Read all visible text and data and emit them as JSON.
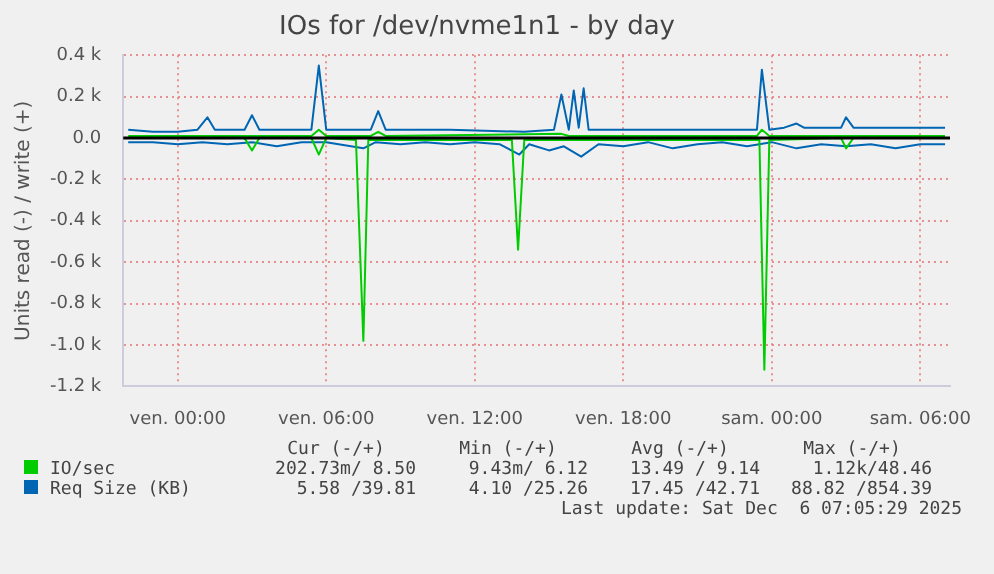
{
  "chart_data": {
    "type": "line",
    "title": "IOs for /dev/nvme1n1 - by day",
    "ylabel": "Units read (-) / write (+)",
    "xlim": [
      "2025-12-04T21:48",
      "2025-12-06T07:12"
    ],
    "xticks": [
      {
        "value": "2025-12-05T00:00",
        "label": "ven. 00:00"
      },
      {
        "value": "2025-12-05T06:00",
        "label": "ven. 06:00"
      },
      {
        "value": "2025-12-05T12:00",
        "label": "ven. 12:00"
      },
      {
        "value": "2025-12-05T18:00",
        "label": "ven. 18:00"
      },
      {
        "value": "2025-12-06T00:00",
        "label": "sam. 00:00"
      },
      {
        "value": "2025-12-06T06:00",
        "label": "sam. 06:00"
      }
    ],
    "ylim": [
      -1200,
      400
    ],
    "yticks": [
      {
        "value": 400,
        "label": "0.4 k"
      },
      {
        "value": 200,
        "label": "0.2 k"
      },
      {
        "value": 0,
        "label": "0.0"
      },
      {
        "value": -200,
        "label": "-0.2 k"
      },
      {
        "value": -400,
        "label": "-0.4 k"
      },
      {
        "value": -600,
        "label": "-0.6 k"
      },
      {
        "value": -800,
        "label": "-0.8 k"
      },
      {
        "value": -1000,
        "label": "-1.0 k"
      },
      {
        "value": -1200,
        "label": "-1.2 k"
      }
    ],
    "grid": true,
    "legend": "bottom",
    "marker": "none",
    "line_style": "solid",
    "series": [
      {
        "name": "IO/sec",
        "color": "#00cc00",
        "x": [
          "2025-12-04T22:00",
          "2025-12-05T02:42",
          "2025-12-05T03:00",
          "2025-12-05T03:18",
          "2025-12-05T05:24",
          "2025-12-05T05:42",
          "2025-12-05T06:00",
          "2025-12-05T07:12",
          "2025-12-05T07:30",
          "2025-12-05T07:42",
          "2025-12-05T13:30",
          "2025-12-05T13:45",
          "2025-12-05T14:00",
          "2025-12-05T23:30",
          "2025-12-05T23:42",
          "2025-12-05T23:54",
          "2025-12-06T02:48",
          "2025-12-06T03:00",
          "2025-12-06T03:18",
          "2025-12-06T07:00"
        ],
        "values": [
          0,
          0,
          -60,
          0,
          0,
          -80,
          0,
          -10,
          -980,
          -10,
          -10,
          -540,
          -10,
          -10,
          -1120,
          -10,
          0,
          -50,
          0,
          0
        ]
      },
      {
        "color": "#00cc00",
        "x": [
          "2025-12-04T22:00",
          "2025-12-05T05:24",
          "2025-12-05T05:42",
          "2025-12-05T06:00",
          "2025-12-05T07:48",
          "2025-12-05T08:06",
          "2025-12-05T08:24",
          "2025-12-05T15:30",
          "2025-12-05T15:48",
          "2025-12-05T23:24",
          "2025-12-05T23:36",
          "2025-12-05T23:54",
          "2025-12-06T07:00"
        ],
        "values": [
          10,
          10,
          40,
          10,
          10,
          30,
          10,
          20,
          10,
          10,
          40,
          10,
          10
        ]
      },
      {
        "name": "Req Size (KB)",
        "color": "#0066b3",
        "x": [
          "2025-12-04T22:00",
          "2025-12-04T23:00",
          "2025-12-05T00:00",
          "2025-12-05T01:00",
          "2025-12-05T02:00",
          "2025-12-05T03:00",
          "2025-12-05T04:00",
          "2025-12-05T05:00",
          "2025-12-05T06:00",
          "2025-12-05T07:30",
          "2025-12-05T08:00",
          "2025-12-05T09:00",
          "2025-12-05T10:00",
          "2025-12-05T11:00",
          "2025-12-05T12:00",
          "2025-12-05T13:00",
          "2025-12-05T13:48",
          "2025-12-05T14:12",
          "2025-12-05T15:00",
          "2025-12-05T15:36",
          "2025-12-05T16:18",
          "2025-12-05T17:00",
          "2025-12-05T18:00",
          "2025-12-05T19:00",
          "2025-12-05T20:00",
          "2025-12-05T21:00",
          "2025-12-05T22:00",
          "2025-12-05T23:00",
          "2025-12-06T00:00",
          "2025-12-06T01:00",
          "2025-12-06T02:00",
          "2025-12-06T03:00",
          "2025-12-06T04:00",
          "2025-12-06T05:00",
          "2025-12-06T06:00",
          "2025-12-06T07:00"
        ],
        "values": [
          -20,
          -20,
          -30,
          -20,
          -30,
          -20,
          -40,
          -20,
          -20,
          -50,
          -20,
          -30,
          -20,
          -30,
          -20,
          -30,
          -80,
          -30,
          -60,
          -40,
          -90,
          -30,
          -40,
          -20,
          -50,
          -30,
          -20,
          -40,
          -20,
          -50,
          -30,
          -40,
          -30,
          -50,
          -30,
          -30
        ]
      },
      {
        "color": "#0066b3",
        "x": [
          "2025-12-04T22:00",
          "2025-12-04T23:00",
          "2025-12-05T00:00",
          "2025-12-05T00:48",
          "2025-12-05T01:12",
          "2025-12-05T01:30",
          "2025-12-05T02:42",
          "2025-12-05T03:00",
          "2025-12-05T03:18",
          "2025-12-05T05:24",
          "2025-12-05T05:42",
          "2025-12-05T06:00",
          "2025-12-05T07:48",
          "2025-12-05T08:06",
          "2025-12-05T08:24",
          "2025-12-05T11:00",
          "2025-12-05T14:00",
          "2025-12-05T15:12",
          "2025-12-05T15:30",
          "2025-12-05T15:48",
          "2025-12-05T16:00",
          "2025-12-05T16:12",
          "2025-12-05T16:24",
          "2025-12-05T16:36",
          "2025-12-05T18:00",
          "2025-12-05T20:00",
          "2025-12-05T22:00",
          "2025-12-05T23:24",
          "2025-12-05T23:36",
          "2025-12-05T23:54",
          "2025-12-06T00:30",
          "2025-12-06T01:00",
          "2025-12-06T01:18",
          "2025-12-06T02:48",
          "2025-12-06T03:00",
          "2025-12-06T03:18",
          "2025-12-06T05:00",
          "2025-12-06T06:00",
          "2025-12-06T07:00"
        ],
        "values": [
          40,
          30,
          30,
          40,
          100,
          40,
          40,
          110,
          40,
          40,
          350,
          40,
          40,
          130,
          40,
          40,
          30,
          40,
          210,
          40,
          230,
          50,
          240,
          40,
          40,
          40,
          40,
          40,
          330,
          40,
          50,
          70,
          50,
          50,
          100,
          50,
          50,
          50,
          50
        ]
      }
    ],
    "ref_lines": [
      {
        "axis": "y",
        "value": 0,
        "color": "#000000"
      }
    ],
    "annotations": [
      "Cur (-/+)",
      "Min (-/+)",
      "Avg (-/+)",
      "Max (-/+)",
      "202.73m/ 8.50",
      "9.43m/ 6.12",
      "13.49 / 9.14",
      "1.12k/48.46",
      "5.58 /39.81",
      "4.10 /25.26",
      "17.45 /42.71",
      "88.82 /854.39",
      "Last update: Sat Dec  6 07:05:29 2025"
    ]
  }
}
